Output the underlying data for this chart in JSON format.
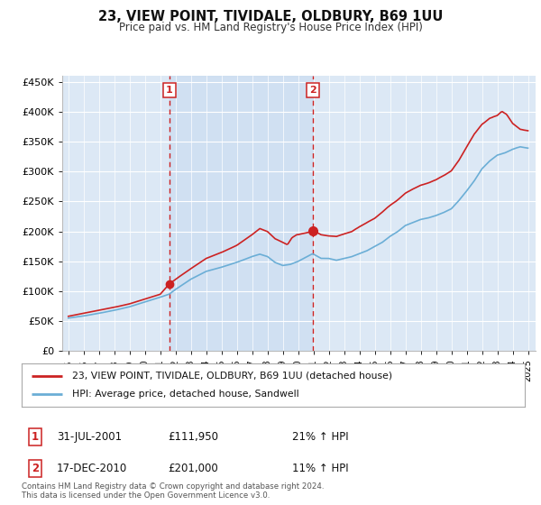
{
  "title": "23, VIEW POINT, TIVIDALE, OLDBURY, B69 1UU",
  "subtitle": "Price paid vs. HM Land Registry's House Price Index (HPI)",
  "legend_line1": "23, VIEW POINT, TIVIDALE, OLDBURY, B69 1UU (detached house)",
  "legend_line2": "HPI: Average price, detached house, Sandwell",
  "marker1_date": "31-JUL-2001",
  "marker1_price": 111950,
  "marker1_hpi": "21% ↑ HPI",
  "marker2_date": "17-DEC-2010",
  "marker2_price": 201000,
  "marker2_hpi": "11% ↑ HPI",
  "hpi_line_color": "#6baed6",
  "price_line_color": "#cc2222",
  "marker_vline_color": "#cc2222",
  "plot_bg": "#dce8f5",
  "footer": "Contains HM Land Registry data © Crown copyright and database right 2024.\nThis data is licensed under the Open Government Licence v3.0.",
  "ylim": [
    0,
    460000
  ],
  "yticks": [
    0,
    50000,
    100000,
    150000,
    200000,
    250000,
    300000,
    350000,
    400000,
    450000
  ],
  "marker1_x": 2001.58,
  "marker2_x": 2010.96
}
